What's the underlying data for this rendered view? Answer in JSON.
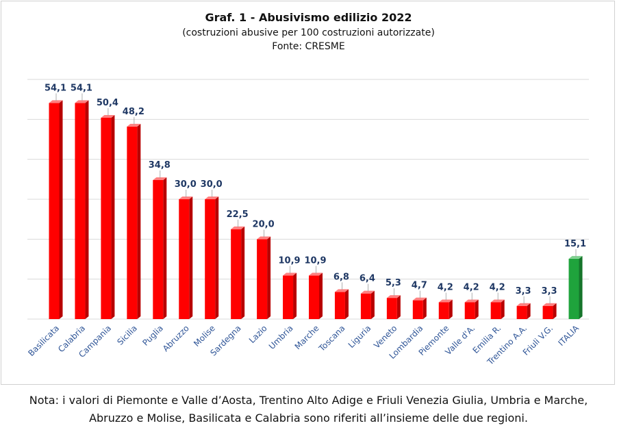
{
  "chart_data": {
    "type": "bar",
    "title": "Graf. 1 - Abusivismo edilizio 2022",
    "subtitle": "(costruzioni abusive per 100 costruzioni autorizzate)",
    "source": "Fonte: CRESME",
    "categories": [
      "Basilicata",
      "Calabria",
      "Campania",
      "Sicilia",
      "Puglia",
      "Abruzzo",
      "Molise",
      "Sardegna",
      "Lazio",
      "Umbria",
      "Marche",
      "Toscana",
      "Liguria",
      "Veneto",
      "Lombardia",
      "Piemonte",
      "Valle d'A.",
      "Emilia R.",
      "Trentino A.A.",
      "Friuli V.G.",
      "ITALIA"
    ],
    "values": [
      54.1,
      54.1,
      50.4,
      48.2,
      34.8,
      30.0,
      30.0,
      22.5,
      20.0,
      10.9,
      10.9,
      6.8,
      6.4,
      5.3,
      4.7,
      4.2,
      4.2,
      4.2,
      3.3,
      3.3,
      15.1
    ],
    "value_labels": [
      "54,1",
      "54,1",
      "50,4",
      "48,2",
      "34,8",
      "30,0",
      "30,0",
      "22,5",
      "20,0",
      "10,9",
      "10,9",
      "6,8",
      "6,4",
      "5,3",
      "4,7",
      "4,2",
      "4,2",
      "4,2",
      "3,3",
      "3,3",
      "15,1"
    ],
    "ylim": [
      0,
      60
    ],
    "grid": true,
    "colors": {
      "bar": "#ff0000",
      "highlight": "#1fa33c",
      "label": "#1f3864",
      "axis_text": "#2f5597",
      "grid": "#d9d9d9"
    },
    "highlight_category": "ITALIA"
  },
  "note": {
    "line1": "Nota: i valori di Piemonte e Valle d’Aosta, Trentino Alto Adige e Friuli Venezia Giulia, Umbria e Marche,",
    "line2": "Abruzzo e Molise, Basilicata e Calabria sono riferiti all’insieme delle due regioni."
  }
}
